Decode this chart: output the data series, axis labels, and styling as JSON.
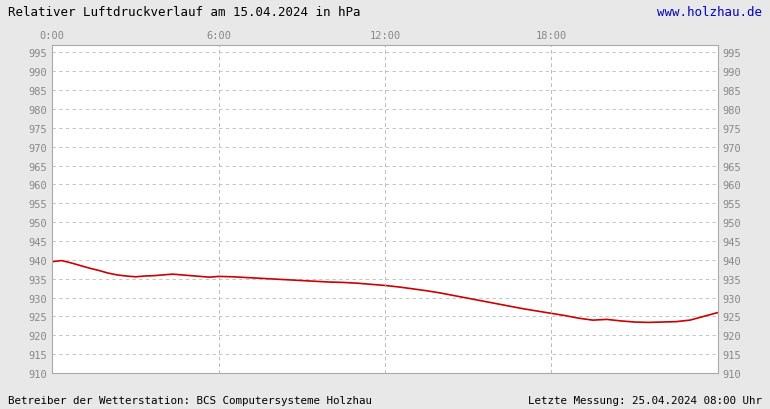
{
  "title": "Relativer Luftdruckverlauf am 15.04.2024 in hPa",
  "url_text": "www.holzhau.de",
  "bottom_left": "Betreiber der Wetterstation: BCS Computersysteme Holzhau",
  "bottom_right": "Letzte Messung: 25.04.2024 08:00 Uhr",
  "x_tick_positions": [
    0,
    360,
    720,
    1080
  ],
  "x_tick_labels": [
    "0:00",
    "6:00",
    "12:00",
    "18:00"
  ],
  "x_max": 1440,
  "ylim": [
    910,
    997
  ],
  "yticks": [
    910,
    915,
    920,
    925,
    930,
    935,
    940,
    945,
    950,
    955,
    960,
    965,
    970,
    975,
    980,
    985,
    990,
    995
  ],
  "line_color": "#cc0000",
  "background_color": "#e8e8e8",
  "plot_bg_color": "#ffffff",
  "grid_color": "#bbbbbb",
  "title_color": "#000000",
  "url_color": "#0000cc",
  "pressure_data_x": [
    0,
    20,
    40,
    60,
    80,
    100,
    120,
    140,
    160,
    180,
    200,
    220,
    240,
    260,
    280,
    300,
    320,
    340,
    360,
    390,
    420,
    450,
    480,
    510,
    540,
    570,
    600,
    630,
    660,
    690,
    720,
    750,
    780,
    810,
    840,
    870,
    900,
    930,
    960,
    990,
    1020,
    1050,
    1080,
    1110,
    1140,
    1170,
    1200,
    1230,
    1260,
    1290,
    1320,
    1350,
    1380,
    1410,
    1440
  ],
  "pressure_data_y": [
    939.5,
    939.8,
    939.2,
    938.5,
    937.8,
    937.2,
    936.5,
    936.0,
    935.7,
    935.5,
    935.7,
    935.8,
    936.0,
    936.2,
    936.0,
    935.8,
    935.6,
    935.4,
    935.6,
    935.5,
    935.3,
    935.1,
    934.9,
    934.7,
    934.5,
    934.3,
    934.1,
    934.0,
    933.8,
    933.5,
    933.2,
    932.8,
    932.3,
    931.8,
    931.2,
    930.5,
    929.8,
    929.1,
    928.4,
    927.7,
    927.0,
    926.4,
    925.8,
    925.2,
    924.5,
    924.0,
    924.2,
    923.8,
    923.5,
    923.4,
    923.5,
    923.6,
    924.0,
    925.0,
    926.0
  ]
}
